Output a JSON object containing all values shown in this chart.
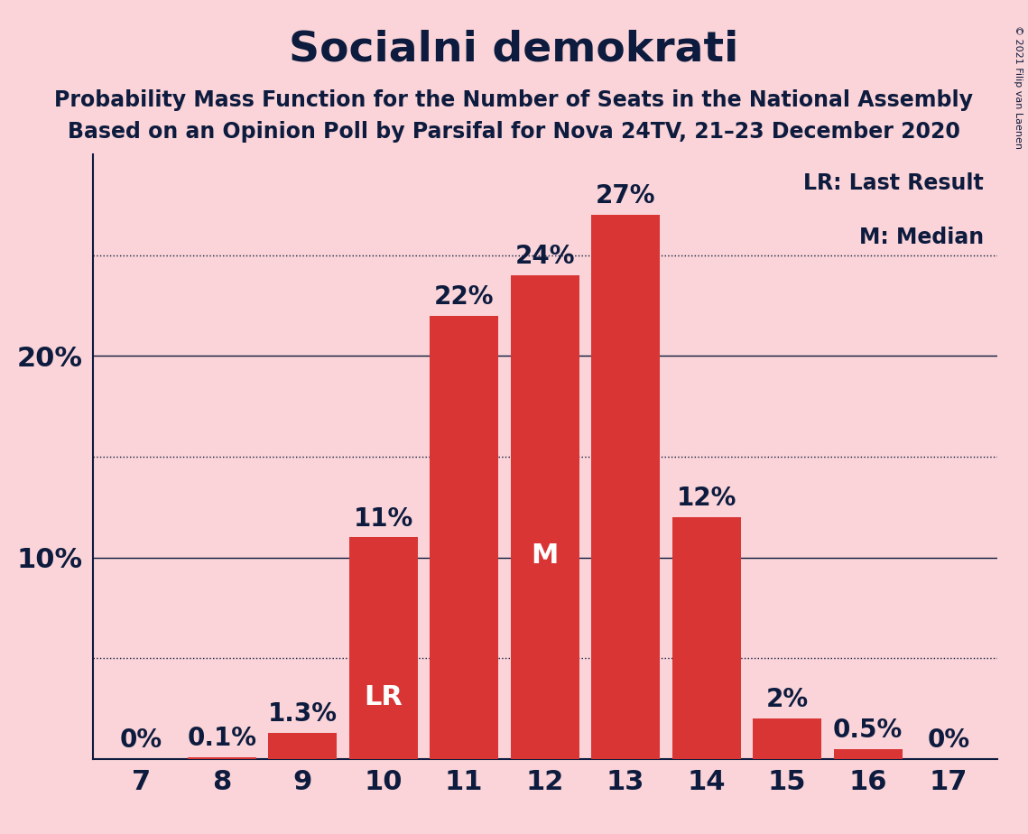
{
  "title": "Socialni demokrati",
  "subtitle1": "Probability Mass Function for the Number of Seats in the National Assembly",
  "subtitle2": "Based on an Opinion Poll by Parsifal for Nova 24TV, 21–23 December 2020",
  "copyright": "© 2021 Filip van Laenen",
  "categories": [
    7,
    8,
    9,
    10,
    11,
    12,
    13,
    14,
    15,
    16,
    17
  ],
  "values": [
    0.0,
    0.1,
    1.3,
    11.0,
    22.0,
    24.0,
    27.0,
    12.0,
    2.0,
    0.5,
    0.0
  ],
  "labels": [
    "0%",
    "0.1%",
    "1.3%",
    "11%",
    "22%",
    "24%",
    "27%",
    "12%",
    "2%",
    "0.5%",
    "0%"
  ],
  "bar_color": "#D93535",
  "background_color": "#FAD4D8",
  "text_color": "#0D1B3E",
  "label_color_inside": "#FFFFFF",
  "label_color_outside": "#0D1B3E",
  "yticks": [
    10,
    20
  ],
  "ytick_labels": [
    "10%",
    "20%"
  ],
  "dotted_lines": [
    5,
    15,
    25
  ],
  "solid_lines": [
    10,
    20
  ],
  "ylim": [
    0,
    30
  ],
  "lr_bar": 10,
  "median_bar": 12,
  "legend_lr": "LR: Last Result",
  "legend_m": "M: Median",
  "title_fontsize": 34,
  "subtitle_fontsize": 17,
  "ylabel_fontsize": 22,
  "xtick_fontsize": 22,
  "bar_label_fontsize": 20,
  "legend_fontsize": 17,
  "inside_label_threshold": 5.0
}
